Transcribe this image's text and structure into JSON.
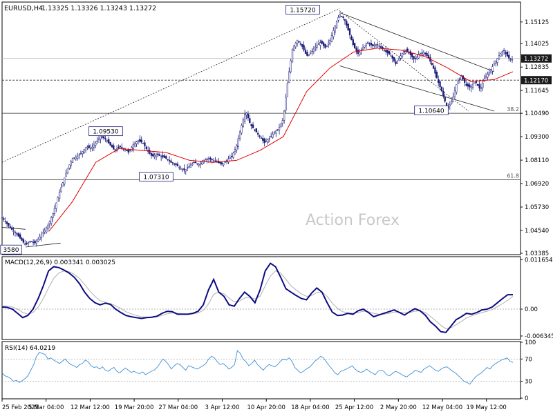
{
  "header": {
    "symbol": "EURUSD,H4",
    "ohlc": "1.13325 1.13326 1.13243 1.13272"
  },
  "watermark": "Action Forex",
  "colors": {
    "candle": "#1a1a7a",
    "ma": "#e00000",
    "macd": "#0b0b80",
    "signal": "#b0b0b0",
    "rsi": "#3b8ed6",
    "level": "#333333"
  },
  "chart_data": [
    {
      "type": "candlestick",
      "title": "EURUSD,H4",
      "price_axis_ticks": [
        "1.15125",
        "1.14025",
        "1.12835",
        "1.11645",
        "1.10490",
        "1.09300",
        "1.08110",
        "1.06920",
        "1.05730",
        "1.04540",
        "1.03385"
      ],
      "ylim": [
        1.0335,
        1.161
      ],
      "current_price": "1.13272",
      "horizontal_levels": [
        {
          "value": 1.1217,
          "label": "1.12170",
          "style": "dashed"
        },
        {
          "value": 1.1049,
          "label": "38.2",
          "style": "solid"
        },
        {
          "value": 1.0712,
          "label": "61.8",
          "style": "solid"
        }
      ],
      "swing_labels": [
        {
          "label": "1.15720",
          "value": 1.1572,
          "date": "18 Apr"
        },
        {
          "label": "1.09530",
          "value": 1.0953,
          "date": "12 Mar"
        },
        {
          "label": "1.07310",
          "value": 1.0731,
          "date": "27 Mar"
        },
        {
          "label": "1.10640",
          "value": 1.1064,
          "date": "12 May"
        },
        {
          "label": "3580",
          "value": 1.0358,
          "date": "28 Feb"
        }
      ],
      "x_ticks": [
        "25 Feb 2025",
        "5 Mar 04:00",
        "12 Mar 12:00",
        "19 Mar 20:00",
        "27 Mar 04:00",
        "3 Apr 12:00",
        "10 Apr 20:00",
        "18 Apr 04:00",
        "25 Apr 12:00",
        "2 May 20:00",
        "12 May 04:00",
        "19 May 12:00"
      ],
      "price_path": [
        [
          0,
          1.052
        ],
        [
          4,
          1.049
        ],
        [
          8,
          1.046
        ],
        [
          12,
          1.044
        ],
        [
          16,
          1.041
        ],
        [
          20,
          1.038
        ],
        [
          24,
          1.04
        ],
        [
          28,
          1.039
        ],
        [
          32,
          1.042
        ],
        [
          36,
          1.045
        ],
        [
          40,
          1.049
        ],
        [
          44,
          1.055
        ],
        [
          48,
          1.063
        ],
        [
          52,
          1.07
        ],
        [
          56,
          1.077
        ],
        [
          60,
          1.082
        ],
        [
          64,
          1.083
        ],
        [
          68,
          1.085
        ],
        [
          72,
          1.088
        ],
        [
          76,
          1.087
        ],
        [
          80,
          1.09
        ],
        [
          84,
          1.093
        ],
        [
          88,
          1.092
        ],
        [
          92,
          1.089
        ],
        [
          96,
          1.086
        ],
        [
          100,
          1.088
        ],
        [
          104,
          1.087
        ],
        [
          108,
          1.085
        ],
        [
          112,
          1.089
        ],
        [
          116,
          1.091
        ],
        [
          120,
          1.09
        ],
        [
          124,
          1.086
        ],
        [
          128,
          1.083
        ],
        [
          132,
          1.084
        ],
        [
          136,
          1.083
        ],
        [
          140,
          1.082
        ],
        [
          144,
          1.08
        ],
        [
          148,
          1.079
        ],
        [
          152,
          1.077
        ],
        [
          156,
          1.076
        ],
        [
          160,
          1.078
        ],
        [
          164,
          1.08
        ],
        [
          168,
          1.079
        ],
        [
          172,
          1.081
        ],
        [
          176,
          1.082
        ],
        [
          180,
          1.081
        ],
        [
          184,
          1.08
        ],
        [
          188,
          1.079
        ],
        [
          192,
          1.081
        ],
        [
          196,
          1.083
        ],
        [
          200,
          1.088
        ],
        [
          204,
          1.098
        ],
        [
          208,
          1.106
        ],
        [
          212,
          1.099
        ],
        [
          216,
          1.096
        ],
        [
          220,
          1.093
        ],
        [
          224,
          1.09
        ],
        [
          228,
          1.092
        ],
        [
          232,
          1.095
        ],
        [
          236,
          1.097
        ],
        [
          240,
          1.102
        ],
        [
          244,
          1.122
        ],
        [
          248,
          1.138
        ],
        [
          252,
          1.142
        ],
        [
          256,
          1.139
        ],
        [
          260,
          1.134
        ],
        [
          264,
          1.136
        ],
        [
          268,
          1.139
        ],
        [
          272,
          1.141
        ],
        [
          276,
          1.138
        ],
        [
          280,
          1.142
        ],
        [
          284,
          1.149
        ],
        [
          288,
          1.155
        ],
        [
          292,
          1.153
        ],
        [
          296,
          1.146
        ],
        [
          300,
          1.139
        ],
        [
          304,
          1.135
        ],
        [
          308,
          1.138
        ],
        [
          312,
          1.141
        ],
        [
          316,
          1.139
        ],
        [
          320,
          1.14
        ],
        [
          324,
          1.138
        ],
        [
          328,
          1.136
        ],
        [
          332,
          1.134
        ],
        [
          336,
          1.13
        ],
        [
          340,
          1.134
        ],
        [
          344,
          1.137
        ],
        [
          348,
          1.135
        ],
        [
          352,
          1.132
        ],
        [
          356,
          1.135
        ],
        [
          360,
          1.136
        ],
        [
          364,
          1.133
        ],
        [
          368,
          1.128
        ],
        [
          372,
          1.121
        ],
        [
          376,
          1.115
        ],
        [
          380,
          1.107
        ],
        [
          384,
          1.111
        ],
        [
          388,
          1.12
        ],
        [
          392,
          1.124
        ],
        [
          396,
          1.119
        ],
        [
          400,
          1.118
        ],
        [
          404,
          1.121
        ],
        [
          408,
          1.117
        ],
        [
          412,
          1.123
        ],
        [
          416,
          1.126
        ],
        [
          420,
          1.13
        ],
        [
          424,
          1.134
        ],
        [
          428,
          1.137
        ],
        [
          432,
          1.133
        ],
        [
          436,
          1.132
        ]
      ],
      "ma_path": [
        [
          40,
          1.045
        ],
        [
          60,
          1.06
        ],
        [
          80,
          1.08
        ],
        [
          100,
          1.087
        ],
        [
          120,
          1.086
        ],
        [
          140,
          1.085
        ],
        [
          160,
          1.081
        ],
        [
          180,
          1.08
        ],
        [
          200,
          1.081
        ],
        [
          220,
          1.086
        ],
        [
          240,
          1.093
        ],
        [
          260,
          1.116
        ],
        [
          280,
          1.128
        ],
        [
          300,
          1.136
        ],
        [
          320,
          1.138
        ],
        [
          340,
          1.137
        ],
        [
          360,
          1.134
        ],
        [
          380,
          1.128
        ],
        [
          400,
          1.121
        ],
        [
          420,
          1.122
        ],
        [
          436,
          1.126
        ]
      ],
      "upward_trendline": [
        [
          0,
          1.08
        ],
        [
          288,
          1.158
        ]
      ],
      "channel_upper": [
        [
          288,
          1.156
        ],
        [
          420,
          1.126
        ]
      ],
      "channel_lower": [
        [
          288,
          1.129
        ],
        [
          420,
          1.106
        ]
      ],
      "fib_diagonal": [
        [
          288,
          1.157
        ],
        [
          398,
          1.106
        ]
      ],
      "early_lines": [
        [
          [
            0,
            1.047
          ],
          [
            20,
            1.046
          ]
        ],
        [
          [
            20,
            1.037
          ],
          [
            50,
            1.039
          ]
        ]
      ]
    },
    {
      "type": "line",
      "title": "MACD(12,26,9) 0.003341 0.003025",
      "y_ticks": [
        "0.011654",
        "0.00",
        "-0.006345"
      ],
      "ylim": [
        -0.007,
        0.0122
      ],
      "series": [
        {
          "name": "MACD",
          "values": [
            0.0005,
            0.0004,
            0.0,
            -0.001,
            -0.002,
            -0.0015,
            0.0,
            0.0025,
            0.0055,
            0.009,
            0.01,
            0.0098,
            0.0092,
            0.0085,
            0.0075,
            0.006,
            0.004,
            0.0025,
            0.0015,
            0.001,
            0.0014,
            0.0011,
            0.0,
            -0.0008,
            -0.0015,
            -0.0018,
            -0.002,
            -0.0022,
            -0.002,
            -0.0019,
            -0.0017,
            -0.001,
            -0.0005,
            -0.0006,
            -0.0012,
            -0.0012,
            -0.0012,
            -0.001,
            -0.0005,
            0.001,
            0.0045,
            0.007,
            0.004,
            0.003,
            0.001,
            0.0007,
            0.0025,
            0.004,
            0.003,
            0.0015,
            0.0045,
            0.009,
            0.0108,
            0.01,
            0.0075,
            0.0048,
            0.004,
            0.0032,
            0.0025,
            0.0022,
            0.0038,
            0.005,
            0.004,
            0.0015,
            -0.0007,
            -0.0015,
            -0.0014,
            -0.001,
            -0.0012,
            -0.0004,
            0.0,
            -0.0008,
            -0.0018,
            -0.0014,
            -0.001,
            -0.0006,
            -0.0002,
            -0.0008,
            -0.0014,
            -0.0006,
            0.0001,
            -0.0004,
            -0.0014,
            -0.003,
            -0.004,
            -0.0053,
            -0.0055,
            -0.004,
            -0.0025,
            -0.0018,
            -0.001,
            -0.0012,
            -0.0008,
            -0.0002,
            0.0,
            0.0005,
            0.0015,
            0.0025,
            0.0034,
            0.0034
          ]
        },
        {
          "name": "Signal",
          "values": [
            0.0008,
            0.0007,
            0.0005,
            0.0,
            -0.0008,
            -0.0012,
            -0.0008,
            0.0005,
            0.0025,
            0.005,
            0.0072,
            0.0085,
            0.009,
            0.0088,
            0.0082,
            0.0072,
            0.0058,
            0.0043,
            0.003,
            0.002,
            0.0016,
            0.0013,
            0.0008,
            0.0002,
            -0.0006,
            -0.0011,
            -0.0015,
            -0.0018,
            -0.0019,
            -0.0019,
            -0.0018,
            -0.0015,
            -0.0011,
            -0.0009,
            -0.001,
            -0.0011,
            -0.0011,
            -0.0011,
            -0.0009,
            -0.0003,
            0.0012,
            0.0035,
            0.004,
            0.0036,
            0.0026,
            0.0017,
            0.0019,
            0.0026,
            0.0028,
            0.0024,
            0.003,
            0.0055,
            0.0078,
            0.009,
            0.0085,
            0.007,
            0.0055,
            0.0045,
            0.0036,
            0.003,
            0.0032,
            0.0039,
            0.004,
            0.003,
            0.0014,
            0.0002,
            -0.0006,
            -0.0009,
            -0.001,
            -0.0008,
            -0.0005,
            -0.0006,
            -0.001,
            -0.0012,
            -0.0012,
            -0.001,
            -0.0007,
            -0.0007,
            -0.0009,
            -0.0008,
            -0.0005,
            -0.0004,
            -0.0008,
            -0.0017,
            -0.0027,
            -0.0038,
            -0.0046,
            -0.0044,
            -0.0037,
            -0.0029,
            -0.0021,
            -0.0016,
            -0.0012,
            -0.0008,
            -0.0005,
            -0.0001,
            0.0006,
            0.0013,
            0.0021,
            0.003
          ]
        }
      ]
    },
    {
      "type": "line",
      "title": "RSI(14) 64.0219",
      "y_ticks": [
        "100",
        "70",
        "30",
        "0"
      ],
      "ylim": [
        0,
        100
      ],
      "levels": [
        70,
        30
      ],
      "series": [
        {
          "name": "RSI",
          "values": [
            45,
            40,
            38,
            35,
            30,
            32,
            28,
            31,
            35,
            40,
            50,
            60,
            75,
            82,
            80,
            78,
            70,
            72,
            68,
            65,
            62,
            66,
            70,
            64,
            60,
            58,
            55,
            60,
            62,
            68,
            65,
            58,
            55,
            56,
            52,
            56,
            50,
            48,
            52,
            55,
            48,
            45,
            50,
            54,
            50,
            46,
            48,
            45,
            44,
            47,
            42,
            45,
            48,
            50,
            55,
            62,
            70,
            66,
            60,
            52,
            58,
            62,
            60,
            55,
            50,
            58,
            56,
            54,
            52,
            55,
            58,
            62,
            70,
            75,
            72,
            65,
            60,
            62,
            58,
            52,
            55,
            60,
            85,
            80,
            70,
            65,
            58,
            62,
            68,
            60,
            55,
            50,
            56,
            60,
            58,
            56,
            60,
            66,
            70,
            68,
            72,
            66,
            55,
            50,
            45,
            48,
            52,
            55,
            60,
            66,
            70,
            75,
            72,
            65,
            58,
            52,
            45,
            42,
            48,
            50,
            52,
            55,
            58,
            52,
            48,
            46,
            48,
            52,
            48,
            45,
            42,
            48,
            50,
            48,
            42,
            40,
            44,
            48,
            46,
            43,
            40,
            38,
            42,
            45,
            50,
            48,
            46,
            52,
            55,
            58,
            54,
            50,
            48,
            52,
            55,
            56,
            52,
            48,
            45,
            40,
            35,
            30,
            28,
            25,
            32,
            38,
            42,
            45,
            50,
            55,
            52,
            58,
            62,
            65,
            68,
            70,
            72,
            66,
            64
          ]
        }
      ]
    }
  ]
}
